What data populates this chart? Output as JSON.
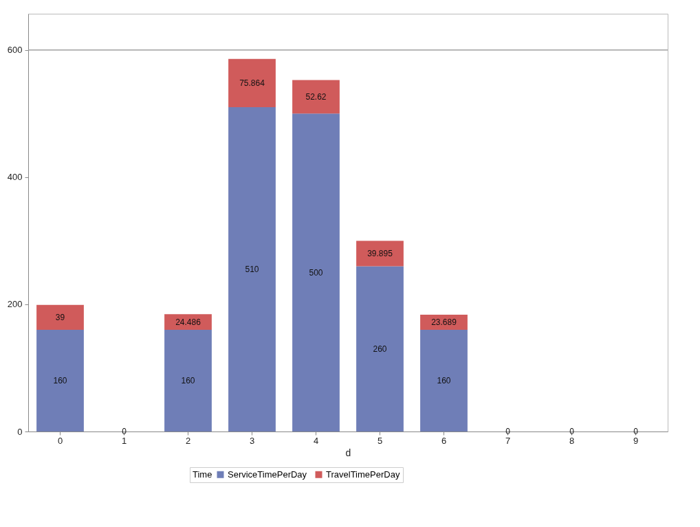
{
  "chart_data": {
    "type": "bar",
    "stacked": true,
    "xlabel": "d",
    "legend_title": "Time",
    "legend": "bottom",
    "categories": [
      "0",
      "1",
      "2",
      "3",
      "4",
      "5",
      "6",
      "7",
      "8",
      "9"
    ],
    "series": [
      {
        "name": "ServiceTimePerDay",
        "color": "#6f7eb7",
        "values": [
          160,
          0,
          160,
          510,
          500,
          260,
          160,
          0,
          0,
          0
        ],
        "value_labels": [
          "160",
          "0",
          "160",
          "510",
          "500",
          "260",
          "160",
          "0",
          "0",
          "0"
        ]
      },
      {
        "name": "TravelTimePerDay",
        "color": "#d05b5b",
        "values": [
          39,
          0,
          24.486,
          75.864,
          52.62,
          39.895,
          23.689,
          0,
          0,
          0
        ],
        "value_labels": [
          "39",
          null,
          "24.486",
          "75.864",
          "52.62",
          "39.895",
          "23.689",
          null,
          null,
          null
        ]
      }
    ],
    "ylim": [
      0,
      657
    ],
    "yticks": [
      0,
      200,
      400,
      600
    ],
    "ref_lines": [
      {
        "axis": "y",
        "value": 600,
        "color": "#a0a0a0"
      }
    ]
  }
}
